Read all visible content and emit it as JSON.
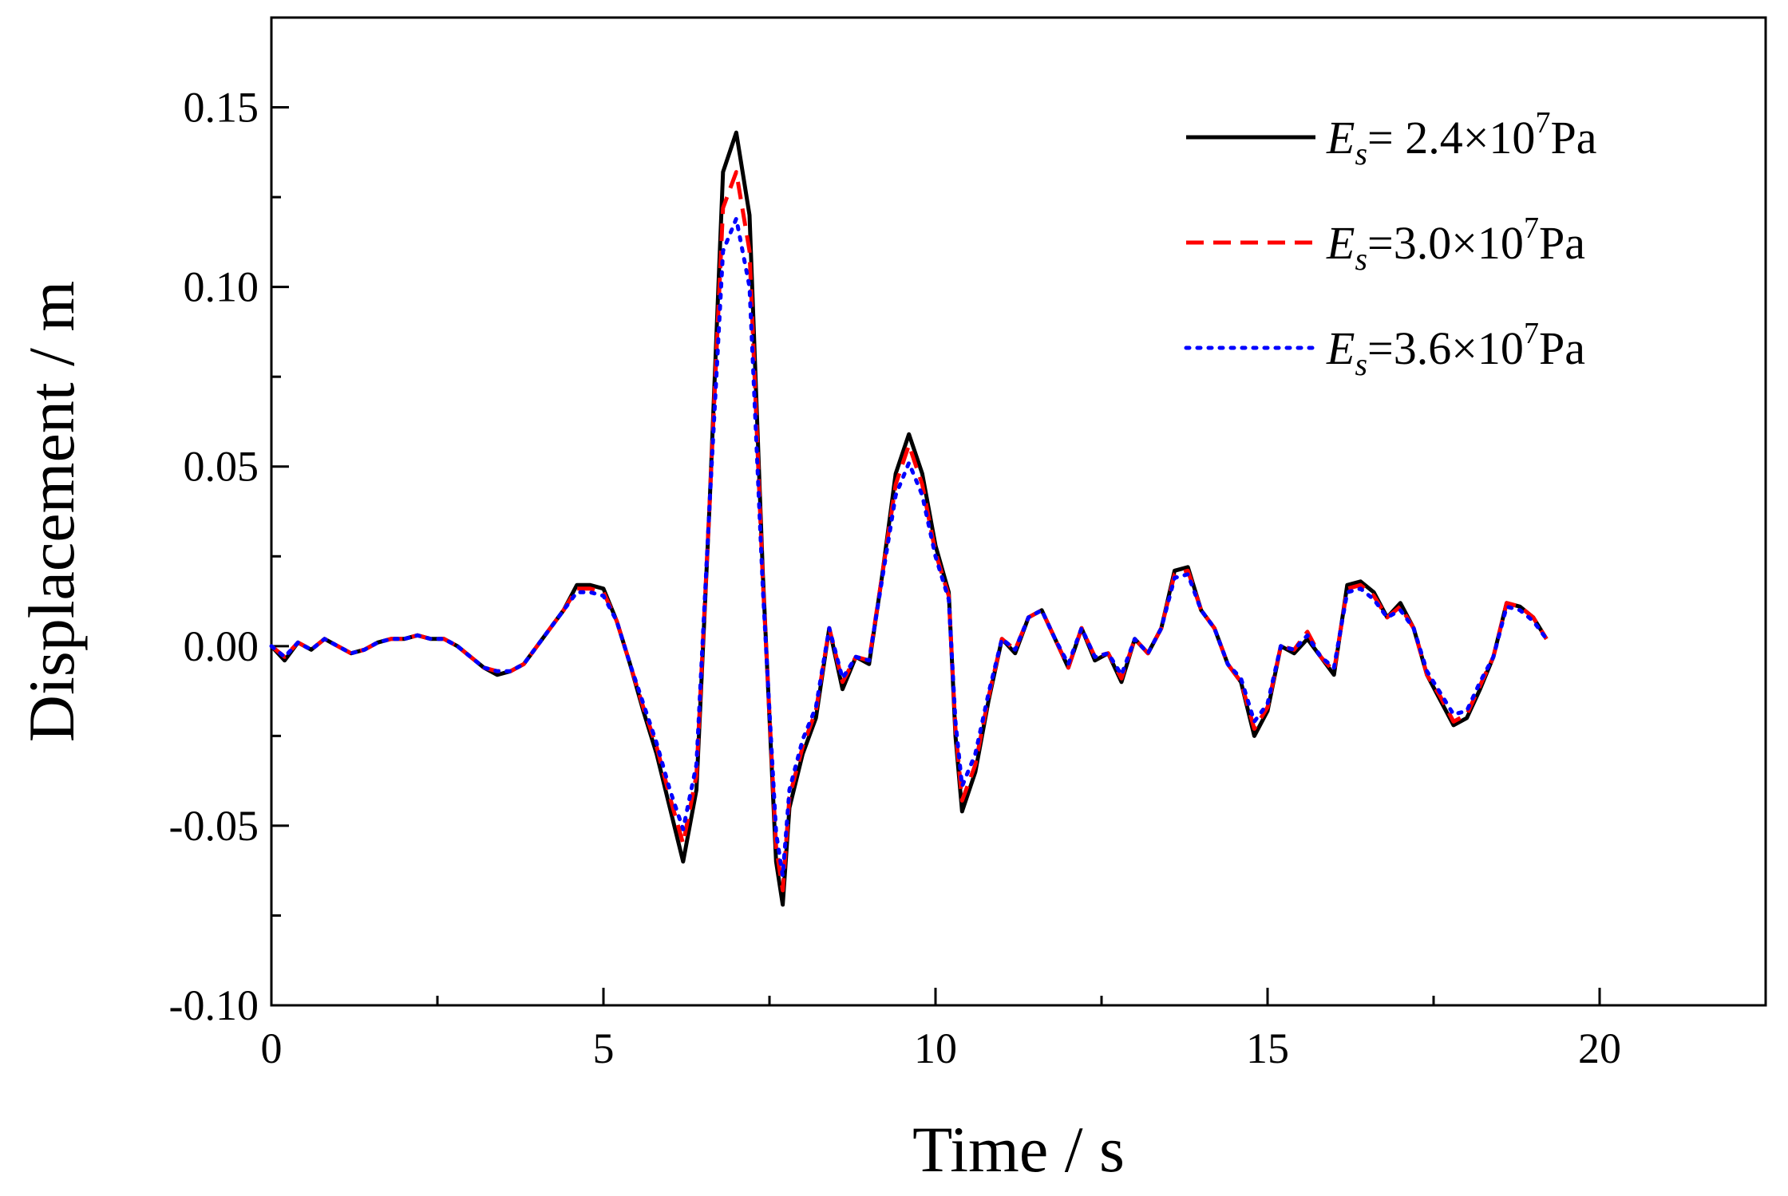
{
  "chart_data": {
    "type": "line",
    "title": "",
    "xlabel": "Time / s",
    "ylabel": "Displacement / m",
    "xlim": [
      0,
      22.5
    ],
    "ylim": [
      -0.1,
      0.175
    ],
    "xticks": [
      0,
      5,
      10,
      15,
      20
    ],
    "xtick_labels": [
      "0",
      "5",
      "10",
      "15",
      "20"
    ],
    "xminor_ticks": [
      2.5,
      7.5,
      12.5,
      17.5
    ],
    "yticks": [
      -0.1,
      -0.05,
      0.0,
      0.05,
      0.1,
      0.15
    ],
    "ytick_labels": [
      "-0.10",
      "-0.05",
      "0.00",
      "0.05",
      "0.10",
      "0.15"
    ],
    "yminor_ticks": [
      -0.075,
      -0.025,
      0.025,
      0.075,
      0.125
    ],
    "grid": false,
    "legend_position": "top-right",
    "x": [
      0,
      0.2,
      0.4,
      0.6,
      0.8,
      1.0,
      1.2,
      1.4,
      1.6,
      1.8,
      2.0,
      2.2,
      2.4,
      2.6,
      2.8,
      3.0,
      3.2,
      3.4,
      3.6,
      3.8,
      4.0,
      4.2,
      4.4,
      4.6,
      4.8,
      5.0,
      5.2,
      5.4,
      5.6,
      5.8,
      6.0,
      6.2,
      6.4,
      6.6,
      6.8,
      7.0,
      7.2,
      7.4,
      7.6,
      7.7,
      7.8,
      8.0,
      8.2,
      8.4,
      8.6,
      8.8,
      9.0,
      9.2,
      9.4,
      9.6,
      9.8,
      10.0,
      10.2,
      10.3,
      10.4,
      10.6,
      10.8,
      11.0,
      11.2,
      11.4,
      11.6,
      11.8,
      12.0,
      12.2,
      12.4,
      12.6,
      12.8,
      13.0,
      13.2,
      13.4,
      13.6,
      13.8,
      14.0,
      14.2,
      14.4,
      14.6,
      14.8,
      15.0,
      15.2,
      15.4,
      15.6,
      15.8,
      16.0,
      16.2,
      16.4,
      16.6,
      16.8,
      17.0,
      17.2,
      17.4,
      17.6,
      17.8,
      18.0,
      18.2,
      18.4,
      18.6,
      18.8,
      19.0,
      19.2
    ],
    "series": [
      {
        "name": "E_s= 2.4×10^7Pa",
        "color": "#000000",
        "dash": "solid",
        "values": [
          0.0,
          -0.004,
          0.001,
          -0.001,
          0.002,
          0.0,
          -0.002,
          -0.001,
          0.001,
          0.002,
          0.002,
          0.003,
          0.002,
          0.002,
          0.0,
          -0.003,
          -0.006,
          -0.008,
          -0.007,
          -0.005,
          0.0,
          0.005,
          0.01,
          0.017,
          0.017,
          0.016,
          0.007,
          -0.005,
          -0.018,
          -0.03,
          -0.045,
          -0.06,
          -0.04,
          0.04,
          0.132,
          0.143,
          0.12,
          0.02,
          -0.06,
          -0.072,
          -0.045,
          -0.03,
          -0.02,
          0.005,
          -0.012,
          -0.003,
          -0.005,
          0.02,
          0.048,
          0.059,
          0.048,
          0.028,
          0.015,
          -0.025,
          -0.046,
          -0.035,
          -0.015,
          0.002,
          -0.002,
          0.008,
          0.01,
          0.002,
          -0.006,
          0.005,
          -0.004,
          -0.002,
          -0.01,
          0.002,
          -0.002,
          0.005,
          0.021,
          0.022,
          0.01,
          0.005,
          -0.005,
          -0.01,
          -0.025,
          -0.018,
          0.0,
          -0.002,
          0.002,
          -0.003,
          -0.008,
          0.017,
          0.018,
          0.015,
          0.008,
          0.012,
          0.005,
          -0.008,
          -0.015,
          -0.022,
          -0.02,
          -0.012,
          -0.003,
          0.012,
          0.011,
          0.008,
          0.002
        ]
      },
      {
        "name": "E_s=3.0×10^7Pa",
        "color": "#ff0000",
        "dash": "dashed",
        "values": [
          0.0,
          -0.003,
          0.001,
          -0.001,
          0.002,
          0.0,
          -0.002,
          -0.001,
          0.001,
          0.002,
          0.002,
          0.003,
          0.002,
          0.002,
          0.0,
          -0.003,
          -0.006,
          -0.007,
          -0.007,
          -0.005,
          0.0,
          0.005,
          0.01,
          0.016,
          0.016,
          0.015,
          0.007,
          -0.005,
          -0.017,
          -0.028,
          -0.042,
          -0.055,
          -0.036,
          0.04,
          0.122,
          0.132,
          0.11,
          0.018,
          -0.056,
          -0.068,
          -0.042,
          -0.028,
          -0.018,
          0.005,
          -0.01,
          -0.003,
          -0.004,
          0.02,
          0.045,
          0.056,
          0.045,
          0.026,
          0.014,
          -0.023,
          -0.043,
          -0.033,
          -0.014,
          0.002,
          -0.001,
          0.008,
          0.01,
          0.002,
          -0.006,
          0.005,
          -0.003,
          -0.002,
          -0.009,
          0.002,
          -0.002,
          0.005,
          0.02,
          0.021,
          0.01,
          0.005,
          -0.005,
          -0.01,
          -0.023,
          -0.017,
          0.0,
          -0.001,
          0.004,
          -0.003,
          -0.007,
          0.016,
          0.017,
          0.014,
          0.008,
          0.011,
          0.005,
          -0.008,
          -0.014,
          -0.021,
          -0.019,
          -0.011,
          -0.003,
          0.012,
          0.011,
          0.008,
          0.002
        ]
      },
      {
        "name": "E_s=3.6×10^7Pa",
        "color": "#0000ff",
        "dash": "dotted",
        "values": [
          0.0,
          -0.003,
          0.001,
          -0.001,
          0.002,
          0.0,
          -0.002,
          -0.001,
          0.001,
          0.002,
          0.002,
          0.003,
          0.002,
          0.002,
          0.0,
          -0.003,
          -0.006,
          -0.007,
          -0.007,
          -0.005,
          0.0,
          0.005,
          0.01,
          0.015,
          0.015,
          0.014,
          0.007,
          -0.005,
          -0.016,
          -0.027,
          -0.04,
          -0.051,
          -0.033,
          0.04,
          0.11,
          0.119,
          0.1,
          0.016,
          -0.052,
          -0.064,
          -0.04,
          -0.026,
          -0.017,
          0.005,
          -0.009,
          -0.003,
          -0.004,
          0.019,
          0.042,
          0.051,
          0.042,
          0.025,
          0.013,
          -0.021,
          -0.039,
          -0.03,
          -0.013,
          0.002,
          -0.001,
          0.008,
          0.01,
          0.002,
          -0.005,
          0.005,
          -0.003,
          -0.002,
          -0.008,
          0.002,
          -0.002,
          0.005,
          0.019,
          0.02,
          0.01,
          0.005,
          -0.005,
          -0.009,
          -0.021,
          -0.016,
          0.0,
          -0.001,
          0.003,
          -0.003,
          -0.006,
          0.015,
          0.016,
          0.013,
          0.008,
          0.01,
          0.005,
          -0.007,
          -0.013,
          -0.019,
          -0.018,
          -0.01,
          -0.003,
          0.011,
          0.01,
          0.007,
          0.002
        ]
      }
    ],
    "legend": [
      {
        "var": "E",
        "sub": "s",
        "pre": "= 2.4×10",
        "sup": "7",
        "post": "Pa"
      },
      {
        "var": "E",
        "sub": "s",
        "pre": "=3.0×10",
        "sup": "7",
        "post": "Pa"
      },
      {
        "var": "E",
        "sub": "s",
        "pre": "=3.6×10",
        "sup": "7",
        "post": "Pa"
      }
    ]
  }
}
